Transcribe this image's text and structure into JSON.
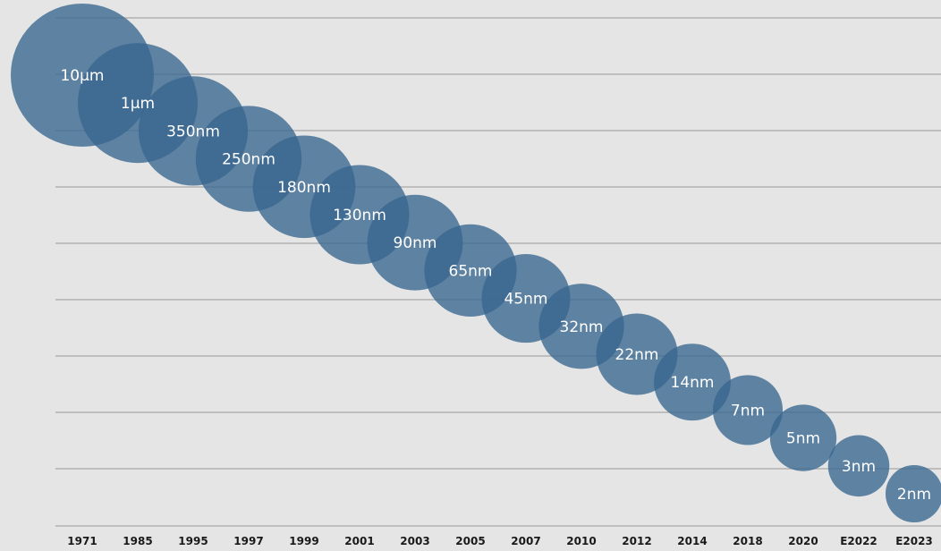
{
  "colors": {
    "background": "#e5e5e5",
    "bubble_fill": "#39668f",
    "gridline": "#a8a8a8",
    "label_text": "#ffffff",
    "axis_text": "#1a1a1a"
  },
  "chart_data": {
    "type": "scatter",
    "title": "",
    "xlabel": "",
    "ylabel": "",
    "grid": true,
    "legend": "none",
    "categories": [
      "1971",
      "1985",
      "1995",
      "1997",
      "1999",
      "2001",
      "2003",
      "2005",
      "2007",
      "2010",
      "2012",
      "2014",
      "2018",
      "2020",
      "E2022",
      "E2023"
    ],
    "series": [
      {
        "points": [
          {
            "x": "1971",
            "label": "10µm",
            "size_nm": 10000
          },
          {
            "x": "1985",
            "label": "1µm",
            "size_nm": 1000
          },
          {
            "x": "1995",
            "label": "350nm",
            "size_nm": 350
          },
          {
            "x": "1997",
            "label": "250nm",
            "size_nm": 250
          },
          {
            "x": "1999",
            "label": "180nm",
            "size_nm": 180
          },
          {
            "x": "2001",
            "label": "130nm",
            "size_nm": 130
          },
          {
            "x": "2003",
            "label": "90nm",
            "size_nm": 90
          },
          {
            "x": "2005",
            "label": "65nm",
            "size_nm": 65
          },
          {
            "x": "2007",
            "label": "45nm",
            "size_nm": 45
          },
          {
            "x": "2010",
            "label": "32nm",
            "size_nm": 32
          },
          {
            "x": "2012",
            "label": "22nm",
            "size_nm": 22
          },
          {
            "x": "2014",
            "label": "14nm",
            "size_nm": 14
          },
          {
            "x": "2018",
            "label": "7nm",
            "size_nm": 7
          },
          {
            "x": "2020",
            "label": "5nm",
            "size_nm": 5
          },
          {
            "x": "E2022",
            "label": "3nm",
            "size_nm": 3
          },
          {
            "x": "E2023",
            "label": "2nm",
            "size_nm": 2
          }
        ]
      }
    ]
  }
}
